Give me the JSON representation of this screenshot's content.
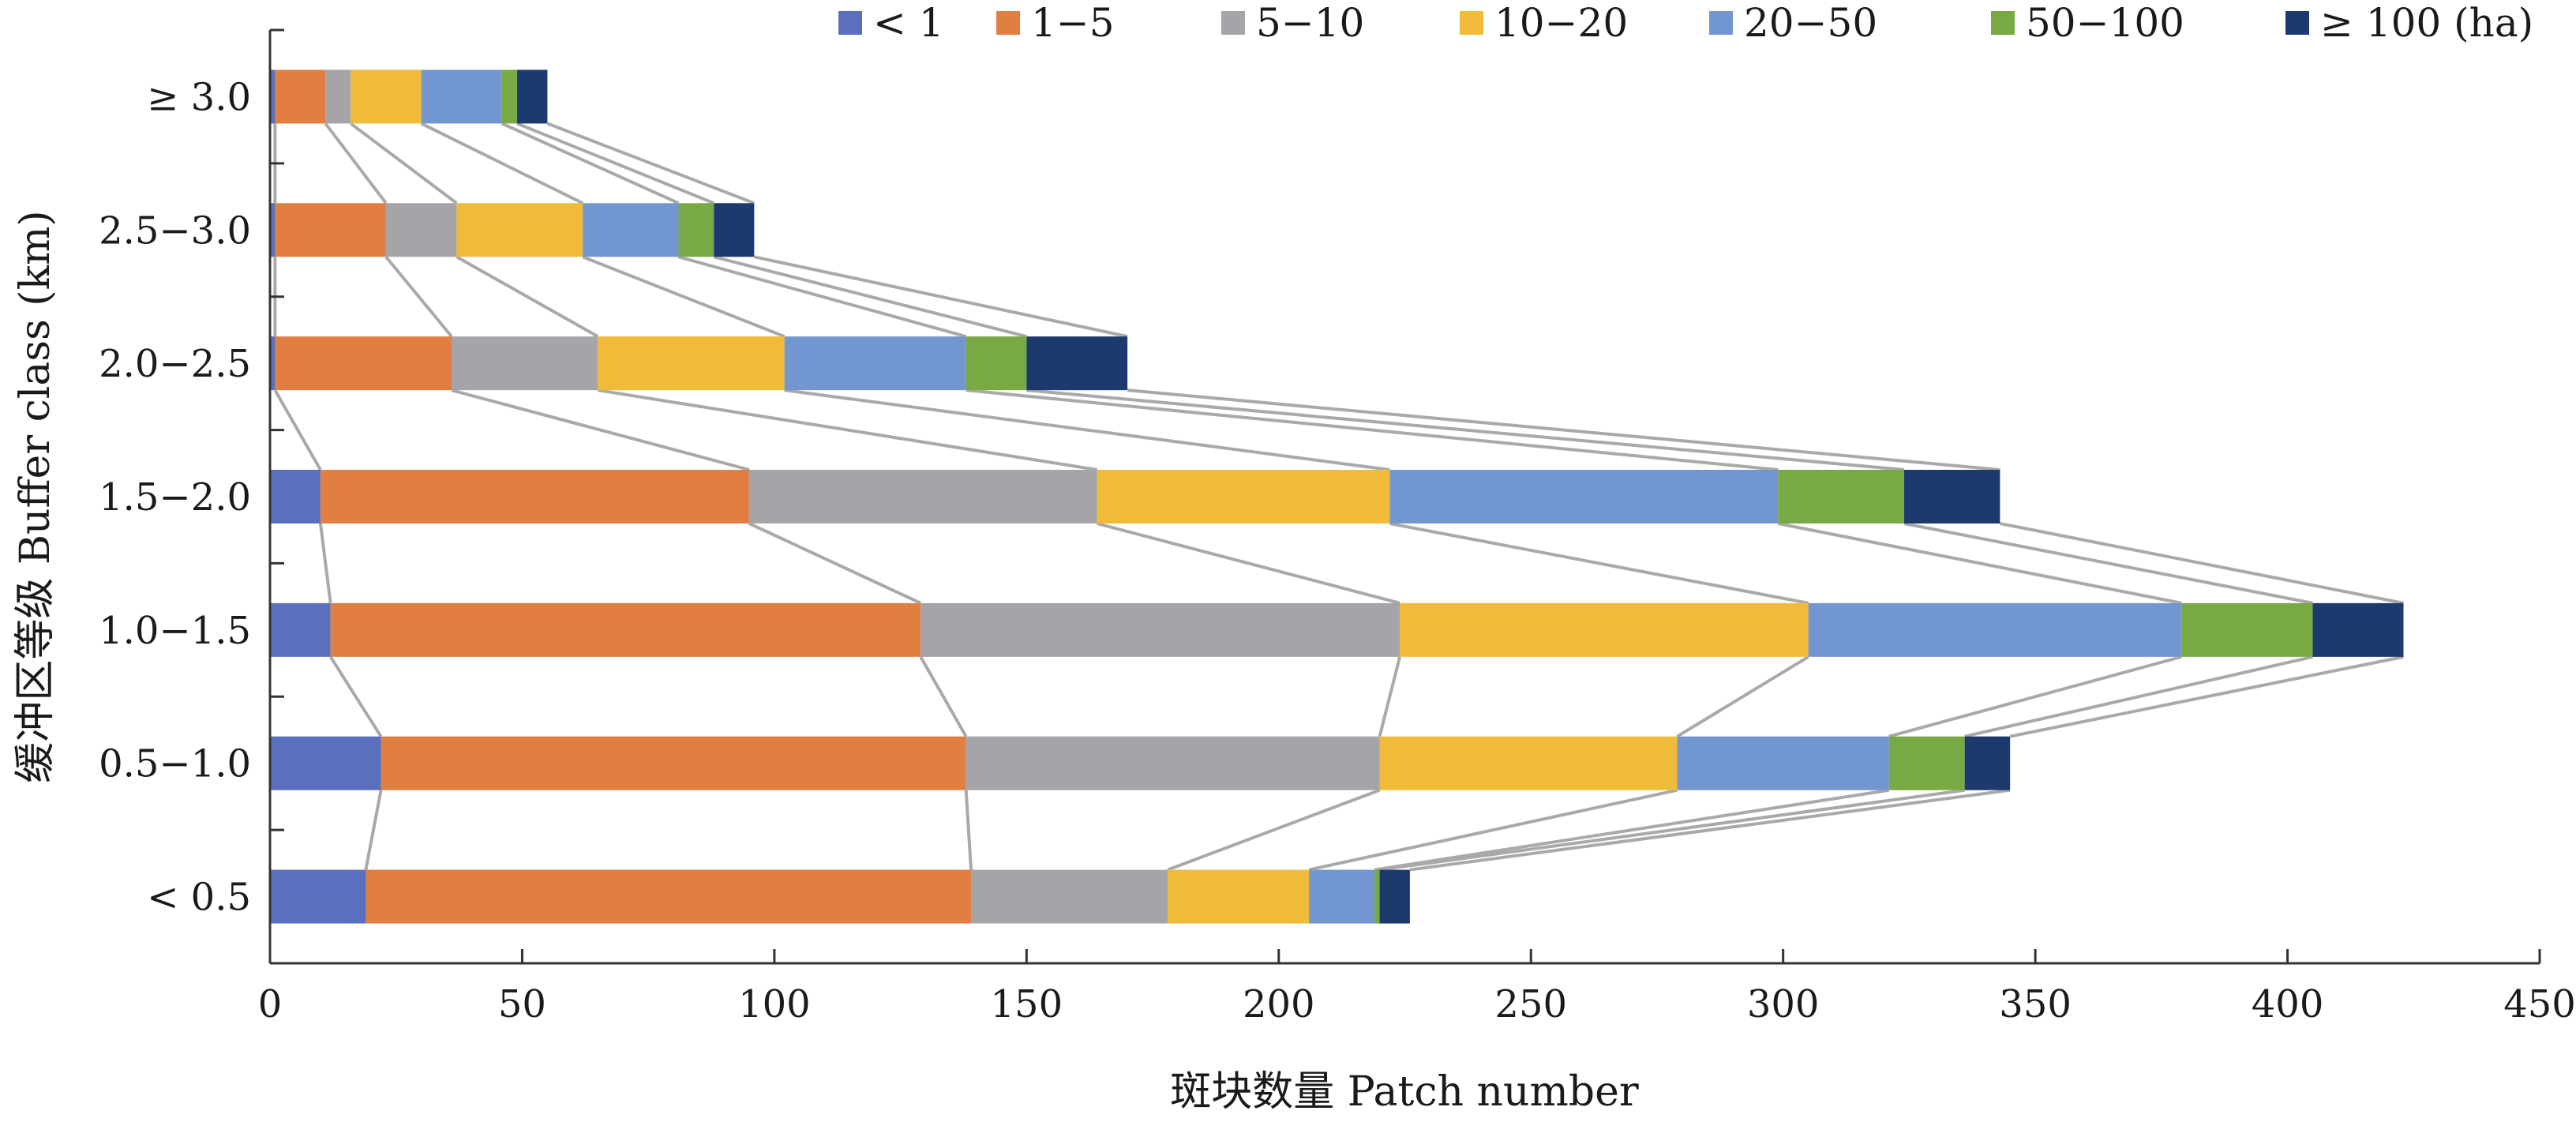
{
  "chart_data": {
    "type": "bar",
    "orientation": "horizontal",
    "stacked": true,
    "title": "",
    "xlabel": "斑块数量 Patch number",
    "ylabel": "缓冲区等级 Buffer class (km)",
    "xlim": [
      0,
      450
    ],
    "xticks": [
      0,
      50,
      100,
      150,
      200,
      250,
      300,
      350,
      400,
      450
    ],
    "xtick_labels": [
      "0",
      "50",
      "100",
      "150",
      "200",
      "250",
      "300",
      "350",
      "400",
      "450"
    ],
    "categories": [
      "< 0.5",
      "0.5−1.0",
      "1.0−1.5",
      "1.5−2.0",
      "2.0−2.5",
      "2.5−3.0",
      "≥ 3.0"
    ],
    "connector_lines": true,
    "grid": false,
    "legend_position": "top-right",
    "series": [
      {
        "name": "< 1",
        "color": "#5a6fbd",
        "values": [
          19,
          22,
          12,
          10,
          1,
          1,
          1
        ]
      },
      {
        "name": "1−5",
        "color": "#e17f43",
        "values": [
          120,
          116,
          117,
          85,
          35,
          22,
          10
        ]
      },
      {
        "name": "5−10",
        "color": "#a5a4a9",
        "values": [
          39,
          82,
          95,
          69,
          29,
          14,
          5
        ]
      },
      {
        "name": "10−20",
        "color": "#f0bb38",
        "values": [
          28,
          59,
          81,
          58,
          37,
          25,
          14
        ]
      },
      {
        "name": "20−50",
        "color": "#7297d0",
        "values": [
          13,
          42,
          74,
          77,
          36,
          19,
          16
        ]
      },
      {
        "name": "50−100",
        "color": "#79a945",
        "values": [
          1,
          15,
          26,
          25,
          12,
          7,
          3
        ]
      },
      {
        "name": "≥ 100 (ha)",
        "color": "#1d3a6e",
        "values": [
          6,
          9,
          18,
          19,
          20,
          8,
          6
        ]
      }
    ]
  }
}
